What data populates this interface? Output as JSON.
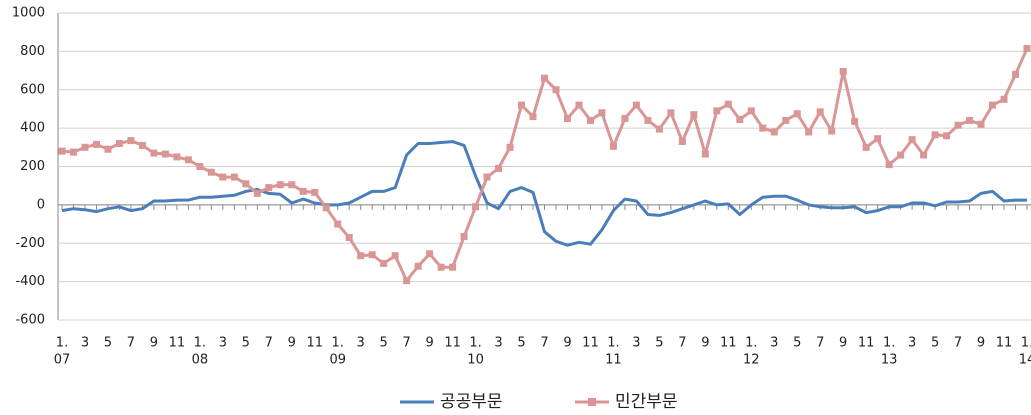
{
  "chart_data": {
    "type": "line",
    "categories": [
      [
        "1.",
        "07"
      ],
      null,
      "3",
      null,
      "5",
      null,
      "7",
      null,
      "9",
      null,
      "11",
      null,
      [
        "1.",
        "08"
      ],
      null,
      "3",
      null,
      "5",
      null,
      "7",
      null,
      "9",
      null,
      "11",
      null,
      [
        "1.",
        "09"
      ],
      null,
      "3",
      null,
      "5",
      null,
      "7",
      null,
      "9",
      null,
      "11",
      null,
      [
        "1.",
        "10"
      ],
      null,
      "3",
      null,
      "5",
      null,
      "7",
      null,
      "9",
      null,
      "11",
      null,
      [
        "1.",
        "11"
      ],
      null,
      "3",
      null,
      "5",
      null,
      "7",
      null,
      "9",
      null,
      "11",
      null,
      [
        "1.",
        "12"
      ],
      null,
      "3",
      null,
      "5",
      null,
      "7",
      null,
      "9",
      null,
      "11",
      null,
      [
        "1.",
        "13"
      ],
      null,
      "3",
      null,
      "5",
      null,
      "7",
      null,
      "9",
      null,
      "11",
      null,
      [
        "1.",
        "14"
      ]
    ],
    "series": [
      {
        "name": "공공부문",
        "color": "#4a7ebb",
        "marker": "none",
        "values": [
          -30,
          -20,
          -25,
          -35,
          -20,
          -10,
          -30,
          -20,
          20,
          20,
          25,
          25,
          40,
          40,
          45,
          50,
          70,
          80,
          60,
          55,
          10,
          30,
          10,
          0,
          0,
          10,
          40,
          70,
          70,
          90,
          260,
          320,
          320,
          325,
          330,
          310,
          150,
          10,
          -20,
          70,
          90,
          65,
          -140,
          -190,
          -210,
          -195,
          -205,
          -130,
          -30,
          30,
          20,
          -50,
          -55,
          -40,
          -20,
          0,
          20,
          0,
          5,
          -50,
          0,
          40,
          45,
          45,
          25,
          0,
          -10,
          -15,
          -15,
          -10,
          -40,
          -30,
          -10,
          -10,
          10,
          10,
          -5,
          15,
          15,
          20,
          60,
          70,
          20,
          25,
          25
        ]
      },
      {
        "name": "민간부문",
        "color": "#d99694",
        "marker": "square",
        "values": [
          280,
          275,
          300,
          315,
          290,
          320,
          335,
          310,
          270,
          265,
          250,
          235,
          200,
          170,
          145,
          145,
          110,
          60,
          90,
          105,
          105,
          70,
          65,
          -15,
          -100,
          -170,
          -265,
          -260,
          -305,
          -265,
          -395,
          -320,
          -255,
          -325,
          -325,
          -165,
          -10,
          145,
          190,
          300,
          520,
          460,
          660,
          600,
          450,
          520,
          440,
          480,
          305,
          450,
          520,
          440,
          395,
          480,
          330,
          470,
          265,
          490,
          525,
          445,
          490,
          400,
          380,
          440,
          475,
          380,
          485,
          385,
          695,
          435,
          300,
          345,
          210,
          260,
          340,
          260,
          365,
          360,
          415,
          440,
          420,
          520,
          550,
          680,
          815
        ]
      }
    ],
    "ylim": [
      -600,
      1000
    ],
    "yticks": [
      -600,
      -400,
      -200,
      0,
      200,
      400,
      600,
      800,
      1000
    ],
    "grid": true,
    "legend": "bottom"
  }
}
